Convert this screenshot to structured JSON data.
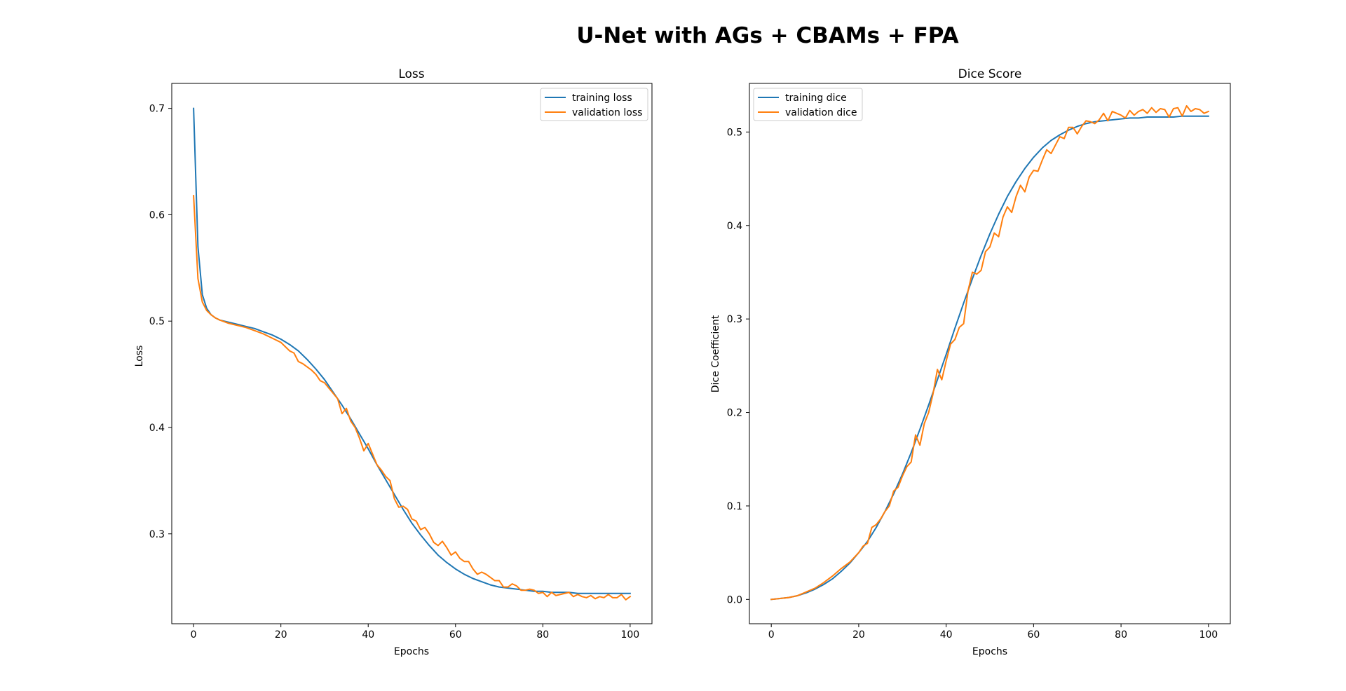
{
  "figure": {
    "suptitle": "U-Net with AGs + CBAMs + FPA"
  },
  "colors": {
    "training": "#1f77b4",
    "validation": "#ff7f0e",
    "axes": "#000000",
    "background": "#ffffff"
  },
  "chart_data": [
    {
      "type": "line",
      "title": "Loss",
      "xlabel": "Epochs",
      "ylabel": "Loss",
      "xlim": [
        -5,
        105
      ],
      "ylim": [
        0.2155,
        0.7235
      ],
      "xticks": [
        0,
        20,
        40,
        60,
        80,
        100
      ],
      "yticks": [
        0.3,
        0.4,
        0.5,
        0.6,
        0.7
      ],
      "xtick_labels": [
        "0",
        "20",
        "40",
        "60",
        "80",
        "100"
      ],
      "ytick_labels": [
        "0.3",
        "0.4",
        "0.5",
        "0.6",
        "0.7"
      ],
      "grid": false,
      "legend_position": "upper right",
      "series": [
        {
          "name": "training loss",
          "color": "#1f77b4",
          "x": [
            0,
            1,
            2,
            3,
            4,
            5,
            6,
            8,
            10,
            12,
            14,
            16,
            18,
            20,
            22,
            24,
            26,
            28,
            30,
            32,
            34,
            36,
            38,
            40,
            42,
            44,
            46,
            48,
            50,
            52,
            54,
            56,
            58,
            60,
            62,
            64,
            66,
            68,
            70,
            72,
            74,
            76,
            78,
            80,
            82,
            84,
            86,
            88,
            90,
            92,
            94,
            96,
            98,
            100
          ],
          "y": [
            0.7,
            0.57,
            0.525,
            0.512,
            0.506,
            0.503,
            0.501,
            0.499,
            0.497,
            0.495,
            0.493,
            0.49,
            0.487,
            0.483,
            0.478,
            0.472,
            0.464,
            0.455,
            0.445,
            0.433,
            0.421,
            0.408,
            0.394,
            0.38,
            0.365,
            0.351,
            0.337,
            0.323,
            0.31,
            0.299,
            0.289,
            0.28,
            0.273,
            0.267,
            0.262,
            0.258,
            0.255,
            0.252,
            0.25,
            0.249,
            0.248,
            0.247,
            0.246,
            0.246,
            0.245,
            0.245,
            0.245,
            0.244,
            0.244,
            0.244,
            0.244,
            0.244,
            0.244,
            0.244
          ]
        },
        {
          "name": "validation loss",
          "color": "#ff7f0e",
          "x": [
            0,
            1,
            2,
            3,
            4,
            5,
            6,
            8,
            10,
            12,
            14,
            16,
            18,
            20,
            21,
            22,
            23,
            24,
            25,
            26,
            27,
            28,
            29,
            30,
            31,
            32,
            33,
            34,
            35,
            36,
            37,
            38,
            39,
            40,
            41,
            42,
            43,
            44,
            45,
            46,
            47,
            48,
            49,
            50,
            51,
            52,
            53,
            54,
            55,
            56,
            57,
            58,
            59,
            60,
            61,
            62,
            63,
            64,
            65,
            66,
            67,
            68,
            69,
            70,
            71,
            72,
            73,
            74,
            75,
            76,
            77,
            78,
            79,
            80,
            81,
            82,
            83,
            84,
            85,
            86,
            87,
            88,
            89,
            90,
            91,
            92,
            93,
            94,
            95,
            96,
            97,
            98,
            99,
            100
          ],
          "y": [
            0.618,
            0.54,
            0.518,
            0.51,
            0.506,
            0.503,
            0.501,
            0.498,
            0.496,
            0.494,
            0.491,
            0.488,
            0.484,
            0.48,
            0.476,
            0.472,
            0.47,
            0.462,
            0.46,
            0.457,
            0.454,
            0.45,
            0.444,
            0.442,
            0.437,
            0.432,
            0.427,
            0.413,
            0.418,
            0.406,
            0.4,
            0.39,
            0.378,
            0.385,
            0.375,
            0.365,
            0.36,
            0.354,
            0.35,
            0.333,
            0.325,
            0.326,
            0.323,
            0.314,
            0.312,
            0.304,
            0.306,
            0.3,
            0.292,
            0.289,
            0.293,
            0.287,
            0.28,
            0.283,
            0.277,
            0.274,
            0.274,
            0.267,
            0.262,
            0.264,
            0.262,
            0.259,
            0.256,
            0.256,
            0.25,
            0.25,
            0.253,
            0.251,
            0.247,
            0.247,
            0.248,
            0.247,
            0.244,
            0.245,
            0.241,
            0.245,
            0.242,
            0.243,
            0.244,
            0.245,
            0.241,
            0.243,
            0.241,
            0.24,
            0.242,
            0.239,
            0.241,
            0.24,
            0.243,
            0.24,
            0.24,
            0.243,
            0.238,
            0.241
          ]
        }
      ]
    },
    {
      "type": "line",
      "title": "Dice Score",
      "xlabel": "Epochs",
      "ylabel": "Dice Coefficient",
      "xlim": [
        -5,
        105
      ],
      "ylim": [
        -0.026,
        0.552
      ],
      "xticks": [
        0,
        20,
        40,
        60,
        80,
        100
      ],
      "yticks": [
        0.0,
        0.1,
        0.2,
        0.3,
        0.4,
        0.5
      ],
      "xtick_labels": [
        "0",
        "20",
        "40",
        "60",
        "80",
        "100"
      ],
      "ytick_labels": [
        "0.0",
        "0.1",
        "0.2",
        "0.3",
        "0.4",
        "0.5"
      ],
      "grid": false,
      "legend_position": "upper left",
      "series": [
        {
          "name": "training dice",
          "color": "#1f77b4",
          "x": [
            0,
            2,
            4,
            6,
            8,
            10,
            12,
            14,
            16,
            18,
            20,
            22,
            24,
            26,
            28,
            30,
            32,
            34,
            36,
            38,
            40,
            42,
            44,
            46,
            48,
            50,
            52,
            54,
            56,
            58,
            60,
            62,
            64,
            66,
            68,
            70,
            72,
            74,
            76,
            78,
            80,
            82,
            84,
            86,
            88,
            90,
            92,
            94,
            96,
            98,
            100
          ],
          "y": [
            0.0,
            0.001,
            0.002,
            0.004,
            0.007,
            0.011,
            0.016,
            0.022,
            0.03,
            0.039,
            0.05,
            0.062,
            0.077,
            0.094,
            0.113,
            0.134,
            0.157,
            0.182,
            0.208,
            0.235,
            0.262,
            0.29,
            0.317,
            0.343,
            0.368,
            0.391,
            0.412,
            0.431,
            0.447,
            0.461,
            0.473,
            0.483,
            0.491,
            0.497,
            0.502,
            0.506,
            0.509,
            0.511,
            0.512,
            0.513,
            0.514,
            0.515,
            0.515,
            0.516,
            0.516,
            0.516,
            0.516,
            0.517,
            0.517,
            0.517,
            0.517
          ]
        },
        {
          "name": "validation dice",
          "color": "#ff7f0e",
          "x": [
            0,
            2,
            4,
            6,
            8,
            10,
            12,
            14,
            16,
            18,
            20,
            21,
            22,
            23,
            24,
            25,
            26,
            27,
            28,
            29,
            30,
            31,
            32,
            33,
            34,
            35,
            36,
            37,
            38,
            39,
            40,
            41,
            42,
            43,
            44,
            45,
            46,
            47,
            48,
            49,
            50,
            51,
            52,
            53,
            54,
            55,
            56,
            57,
            58,
            59,
            60,
            61,
            62,
            63,
            64,
            65,
            66,
            67,
            68,
            69,
            70,
            71,
            72,
            73,
            74,
            75,
            76,
            77,
            78,
            79,
            80,
            81,
            82,
            83,
            84,
            85,
            86,
            87,
            88,
            89,
            90,
            91,
            92,
            93,
            94,
            95,
            96,
            97,
            98,
            99,
            100
          ],
          "y": [
            0.0,
            0.001,
            0.002,
            0.004,
            0.008,
            0.012,
            0.018,
            0.025,
            0.033,
            0.04,
            0.05,
            0.057,
            0.06,
            0.077,
            0.08,
            0.086,
            0.094,
            0.1,
            0.116,
            0.12,
            0.132,
            0.142,
            0.147,
            0.176,
            0.165,
            0.188,
            0.2,
            0.22,
            0.246,
            0.235,
            0.255,
            0.273,
            0.278,
            0.291,
            0.295,
            0.33,
            0.35,
            0.348,
            0.352,
            0.372,
            0.377,
            0.392,
            0.388,
            0.409,
            0.42,
            0.414,
            0.431,
            0.443,
            0.436,
            0.452,
            0.459,
            0.458,
            0.47,
            0.481,
            0.477,
            0.486,
            0.495,
            0.493,
            0.505,
            0.505,
            0.498,
            0.506,
            0.512,
            0.511,
            0.509,
            0.513,
            0.52,
            0.512,
            0.522,
            0.52,
            0.518,
            0.515,
            0.523,
            0.518,
            0.522,
            0.524,
            0.52,
            0.526,
            0.521,
            0.525,
            0.524,
            0.516,
            0.525,
            0.526,
            0.517,
            0.528,
            0.522,
            0.525,
            0.524,
            0.52,
            0.522
          ]
        }
      ]
    }
  ]
}
